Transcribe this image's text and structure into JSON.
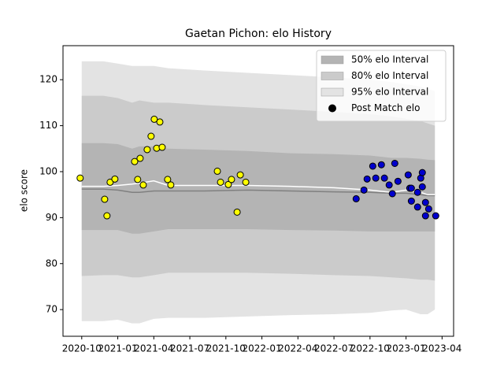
{
  "chart_data": {
    "type": "scatter",
    "title": "Gaetan Pichon: elo History",
    "ylabel": "elo score",
    "xlim": [
      2020.62,
      2023.33
    ],
    "ylim": [
      64.2,
      127.4
    ],
    "xticks": [
      {
        "value": 2020.75,
        "label": "2020-10"
      },
      {
        "value": 2021.0,
        "label": "2021-01"
      },
      {
        "value": 2021.25,
        "label": "2021-04"
      },
      {
        "value": 2021.5,
        "label": "2021-07"
      },
      {
        "value": 2021.75,
        "label": "2021-10"
      },
      {
        "value": 2022.0,
        "label": "2022-01"
      },
      {
        "value": 2022.25,
        "label": "2022-04"
      },
      {
        "value": 2022.5,
        "label": "2022-07"
      },
      {
        "value": 2022.75,
        "label": "2022-10"
      },
      {
        "value": 2023.0,
        "label": "2023-01"
      },
      {
        "value": 2023.25,
        "label": "2023-04"
      }
    ],
    "yticks": [
      70,
      80,
      90,
      100,
      110,
      120
    ],
    "legend": "upper right",
    "x": [
      2020.75,
      2020.9,
      2021.0,
      2021.1,
      2021.15,
      2021.25,
      2021.35,
      2021.6,
      2021.9,
      2022.2,
      2022.5,
      2022.75,
      2022.9,
      2023.0,
      2023.1,
      2023.15,
      2023.2
    ],
    "bands": [
      {
        "name": "50% elo Interval",
        "color": "#b4b4b4",
        "upper": [
          106.2,
          106.2,
          106,
          105,
          105.5,
          105.5,
          105,
          104.8,
          104.5,
          104,
          103.8,
          103.5,
          103,
          103,
          102.8,
          102.6,
          102.5
        ],
        "lower": [
          87.3,
          87.3,
          87.3,
          86.5,
          86.5,
          87,
          87.5,
          87.5,
          87.5,
          87.3,
          87.2,
          87,
          87,
          87,
          87,
          87,
          87
        ]
      },
      {
        "name": "80% elo Interval",
        "color": "#cbcbcb",
        "upper": [
          116.5,
          116.5,
          116,
          115,
          115.5,
          115,
          115,
          114.5,
          114,
          113.5,
          113,
          112.5,
          112,
          111.5,
          111,
          110.5,
          110
        ],
        "lower": [
          77.3,
          77.5,
          77.5,
          77,
          77,
          77.5,
          78,
          78,
          78,
          77.8,
          77.5,
          77.3,
          77,
          76.8,
          76.5,
          76.5,
          76.3
        ]
      },
      {
        "name": "95% elo Interval",
        "color": "#e3e3e3",
        "upper": [
          124,
          124,
          123.5,
          123,
          123,
          123,
          122.5,
          122,
          121.5,
          121,
          120.5,
          120,
          119.5,
          119,
          118.5,
          118,
          117.5
        ],
        "lower": [
          67.5,
          67.5,
          67.8,
          67,
          67,
          68,
          68.2,
          68.2,
          68.5,
          68.8,
          69,
          69.3,
          69.8,
          70,
          69,
          69,
          70
        ]
      }
    ],
    "lines": [
      {
        "color": "#808080",
        "values": [
          96.2,
          96.2,
          96,
          95.5,
          95.5,
          95.8,
          95.8,
          95.8,
          96,
          95.8,
          95.6,
          95.5,
          95.3,
          95.3,
          95,
          94.8,
          94.8
        ]
      },
      {
        "color": "#ffffff",
        "values": [
          96.8,
          96.8,
          97,
          97.3,
          97.5,
          98,
          97,
          97,
          97,
          96.8,
          96.5,
          96,
          95.5,
          96,
          95.5,
          95,
          95
        ]
      }
    ],
    "series": [
      {
        "name": "Post Match elo",
        "color": "#000000",
        "x": [
          2020.739,
          2020.909,
          2020.925,
          2020.947,
          2020.98,
          2021.117,
          2021.138,
          2021.155,
          2021.177,
          2021.204,
          2021.231,
          2021.253,
          2021.27,
          2021.292,
          2021.308,
          2021.346,
          2021.368,
          2021.691,
          2021.713,
          2021.767,
          2021.789,
          2021.828,
          2021.85,
          2021.888,
          2022.654,
          2022.708,
          2022.73,
          2022.769,
          2022.79,
          2022.829,
          2022.85,
          2022.883,
          2022.905,
          2022.922,
          2022.944,
          2023.015,
          2023.026,
          2023.037,
          2023.037,
          2023.08,
          2023.08,
          2023.102,
          2023.113,
          2023.113,
          2023.135,
          2023.135,
          2023.157,
          2023.206
        ],
        "values": [
          98.6,
          94.0,
          90.4,
          97.7,
          98.4,
          102.2,
          98.3,
          102.9,
          97.1,
          104.8,
          107.7,
          111.4,
          105.1,
          110.8,
          105.3,
          98.3,
          97.1,
          100.1,
          97.7,
          97.2,
          98.3,
          91.2,
          99.3,
          97.7,
          94.1,
          96.0,
          98.4,
          101.2,
          98.6,
          101.5,
          98.6,
          97.1,
          95.2,
          101.8,
          97.9,
          99.3,
          96.4,
          96.4,
          93.6,
          95.5,
          92.3,
          98.6,
          99.8,
          96.7,
          93.3,
          90.4,
          91.9,
          90.4
        ],
        "point_colors": [
          "#ffff00",
          "#ffff00",
          "#ffff00",
          "#ffff00",
          "#ffff00",
          "#ffff00",
          "#ffff00",
          "#ffff00",
          "#ffff00",
          "#ffff00",
          "#ffff00",
          "#ffff00",
          "#ffff00",
          "#ffff00",
          "#ffff00",
          "#ffff00",
          "#ffff00",
          "#ffff00",
          "#ffff00",
          "#ffff00",
          "#ffff00",
          "#ffff00",
          "#ffff00",
          "#ffff00",
          "#0000cd",
          "#0000cd",
          "#0000cd",
          "#0000cd",
          "#0000cd",
          "#0000cd",
          "#0000cd",
          "#0000cd",
          "#0000cd",
          "#0000cd",
          "#0000cd",
          "#0000cd",
          "#0000cd",
          "#0000cd",
          "#0000cd",
          "#0000cd",
          "#0000cd",
          "#0000cd",
          "#0000cd",
          "#0000cd",
          "#0000cd",
          "#0000cd",
          "#0000cd",
          "#0000cd"
        ]
      }
    ]
  }
}
